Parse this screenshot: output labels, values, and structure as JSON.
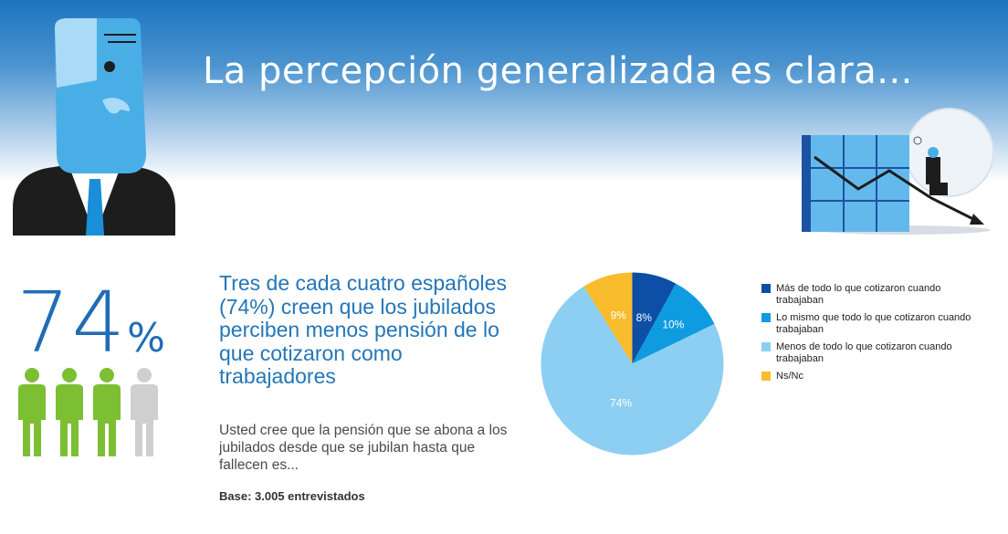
{
  "header": {
    "title": "La percepción generalizada es clara..."
  },
  "stat": {
    "number": "74",
    "percent_sign": "%",
    "people_filled": 3,
    "people_total": 4
  },
  "headline": "Tres de cada cuatro españoles (74%) creen que los jubilados perciben menos pensión de lo que cotizaron como trabajadores",
  "question": "Usted cree que la pensión que se abona a los jubilados desde que se jubilan hasta que fallecen es...",
  "base_note": "Base: 3.005 entrevistados",
  "colors": {
    "figure_green": "#7cbf33",
    "figure_grey": "#cfcfcf",
    "accent_blue": "#1f6db5"
  },
  "chart_data": {
    "type": "pie",
    "title": "",
    "start": "top, clockwise",
    "slices": [
      {
        "label": "Más de todo lo que cotizaron cuando trabajaban",
        "value": 8,
        "display": "8%",
        "color": "#0d4ea6"
      },
      {
        "label": "Lo mismo que todo lo que cotizaron cuando trabajaban",
        "value": 10,
        "display": "10%",
        "color": "#0e9be0"
      },
      {
        "label": "Menos de todo lo que cotizaron cuando trabajaban",
        "value": 74,
        "display": "74%",
        "color": "#8dcff2"
      },
      {
        "label": "Ns/Nc",
        "value": 9,
        "display": "9%",
        "color": "#f8bc2c"
      }
    ],
    "legend_position": "right"
  }
}
